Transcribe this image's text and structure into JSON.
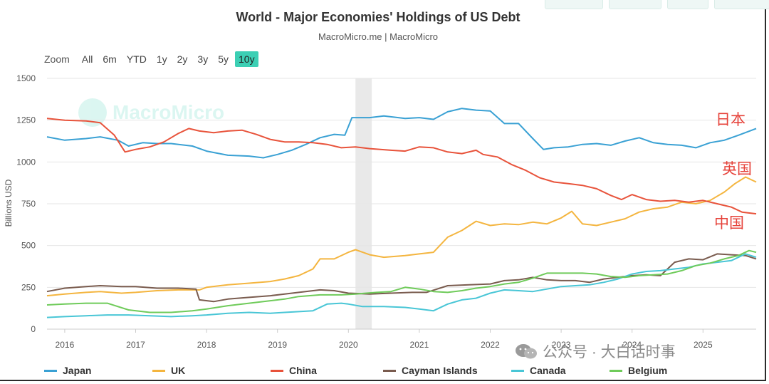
{
  "title": "World - Major Economies' Holdings of US Debt",
  "subtitle": "MacroMicro.me | MacroMicro",
  "zoom": {
    "label": "Zoom",
    "buttons": [
      "All",
      "6m",
      "YTD",
      "1y",
      "2y",
      "3y",
      "5y",
      "10y"
    ],
    "active": "10y"
  },
  "watermark": "MacroMicro",
  "brand": {
    "text": "公众号 · 大白话时事"
  },
  "annotations": {
    "japan": "日本",
    "uk": "英国",
    "china": "中国"
  },
  "chart_data": {
    "type": "line",
    "ylabel": "Billions USD",
    "ylim": [
      0,
      1500
    ],
    "yticks": [
      0,
      250,
      500,
      750,
      1000,
      1250,
      1500
    ],
    "xlim": [
      2015.75,
      2025.75
    ],
    "xticks": [
      "2016",
      "2017",
      "2018",
      "2019",
      "2020",
      "2021",
      "2022",
      "2023",
      "2024",
      "2025"
    ],
    "shaded_period": [
      2020.1,
      2020.33
    ],
    "series": [
      {
        "name": "Japan",
        "color": "#3aa1d4",
        "points": [
          [
            2015.75,
            1150
          ],
          [
            2016.0,
            1130
          ],
          [
            2016.3,
            1140
          ],
          [
            2016.5,
            1150
          ],
          [
            2016.75,
            1130
          ],
          [
            2016.9,
            1095
          ],
          [
            2017.1,
            1115
          ],
          [
            2017.3,
            1110
          ],
          [
            2017.5,
            1110
          ],
          [
            2017.8,
            1095
          ],
          [
            2018.0,
            1065
          ],
          [
            2018.3,
            1040
          ],
          [
            2018.6,
            1035
          ],
          [
            2018.8,
            1025
          ],
          [
            2019.0,
            1045
          ],
          [
            2019.2,
            1070
          ],
          [
            2019.4,
            1105
          ],
          [
            2019.6,
            1145
          ],
          [
            2019.8,
            1165
          ],
          [
            2019.95,
            1160
          ],
          [
            2020.05,
            1265
          ],
          [
            2020.3,
            1265
          ],
          [
            2020.5,
            1275
          ],
          [
            2020.8,
            1260
          ],
          [
            2021.0,
            1265
          ],
          [
            2021.2,
            1255
          ],
          [
            2021.4,
            1300
          ],
          [
            2021.6,
            1320
          ],
          [
            2021.8,
            1310
          ],
          [
            2022.0,
            1305
          ],
          [
            2022.2,
            1230
          ],
          [
            2022.4,
            1230
          ],
          [
            2022.6,
            1140
          ],
          [
            2022.75,
            1075
          ],
          [
            2022.9,
            1085
          ],
          [
            2023.1,
            1090
          ],
          [
            2023.3,
            1105
          ],
          [
            2023.5,
            1110
          ],
          [
            2023.7,
            1100
          ],
          [
            2023.9,
            1125
          ],
          [
            2024.1,
            1145
          ],
          [
            2024.3,
            1115
          ],
          [
            2024.5,
            1105
          ],
          [
            2024.7,
            1100
          ],
          [
            2024.9,
            1085
          ],
          [
            2025.1,
            1115
          ],
          [
            2025.3,
            1130
          ],
          [
            2025.5,
            1160
          ],
          [
            2025.75,
            1200
          ]
        ]
      },
      {
        "name": "UK",
        "color": "#f4b53f",
        "points": [
          [
            2015.75,
            200
          ],
          [
            2016.0,
            210
          ],
          [
            2016.3,
            220
          ],
          [
            2016.5,
            225
          ],
          [
            2016.8,
            215
          ],
          [
            2017.0,
            220
          ],
          [
            2017.3,
            230
          ],
          [
            2017.6,
            235
          ],
          [
            2017.9,
            235
          ],
          [
            2018.0,
            250
          ],
          [
            2018.3,
            265
          ],
          [
            2018.6,
            275
          ],
          [
            2018.9,
            285
          ],
          [
            2019.1,
            300
          ],
          [
            2019.3,
            320
          ],
          [
            2019.5,
            360
          ],
          [
            2019.6,
            420
          ],
          [
            2019.8,
            420
          ],
          [
            2020.0,
            460
          ],
          [
            2020.1,
            475
          ],
          [
            2020.3,
            445
          ],
          [
            2020.5,
            430
          ],
          [
            2020.8,
            440
          ],
          [
            2021.0,
            450
          ],
          [
            2021.2,
            460
          ],
          [
            2021.4,
            550
          ],
          [
            2021.6,
            590
          ],
          [
            2021.8,
            645
          ],
          [
            2022.0,
            620
          ],
          [
            2022.2,
            630
          ],
          [
            2022.4,
            625
          ],
          [
            2022.6,
            640
          ],
          [
            2022.8,
            630
          ],
          [
            2023.0,
            665
          ],
          [
            2023.15,
            705
          ],
          [
            2023.3,
            630
          ],
          [
            2023.5,
            620
          ],
          [
            2023.7,
            640
          ],
          [
            2023.9,
            660
          ],
          [
            2024.1,
            700
          ],
          [
            2024.3,
            720
          ],
          [
            2024.5,
            730
          ],
          [
            2024.7,
            760
          ],
          [
            2024.9,
            750
          ],
          [
            2025.1,
            770
          ],
          [
            2025.3,
            820
          ],
          [
            2025.45,
            870
          ],
          [
            2025.6,
            910
          ],
          [
            2025.75,
            880
          ]
        ]
      },
      {
        "name": "China",
        "color": "#e8533b",
        "points": [
          [
            2015.75,
            1260
          ],
          [
            2016.0,
            1250
          ],
          [
            2016.3,
            1245
          ],
          [
            2016.5,
            1235
          ],
          [
            2016.7,
            1160
          ],
          [
            2016.85,
            1060
          ],
          [
            2017.0,
            1075
          ],
          [
            2017.2,
            1090
          ],
          [
            2017.4,
            1120
          ],
          [
            2017.6,
            1170
          ],
          [
            2017.75,
            1200
          ],
          [
            2017.9,
            1185
          ],
          [
            2018.1,
            1175
          ],
          [
            2018.3,
            1185
          ],
          [
            2018.5,
            1190
          ],
          [
            2018.7,
            1165
          ],
          [
            2018.9,
            1135
          ],
          [
            2019.1,
            1120
          ],
          [
            2019.3,
            1120
          ],
          [
            2019.5,
            1115
          ],
          [
            2019.7,
            1105
          ],
          [
            2019.9,
            1085
          ],
          [
            2020.1,
            1090
          ],
          [
            2020.3,
            1080
          ],
          [
            2020.6,
            1070
          ],
          [
            2020.8,
            1065
          ],
          [
            2021.0,
            1090
          ],
          [
            2021.2,
            1085
          ],
          [
            2021.4,
            1060
          ],
          [
            2021.6,
            1050
          ],
          [
            2021.8,
            1070
          ],
          [
            2021.9,
            1045
          ],
          [
            2022.1,
            1030
          ],
          [
            2022.3,
            985
          ],
          [
            2022.5,
            950
          ],
          [
            2022.7,
            905
          ],
          [
            2022.9,
            880
          ],
          [
            2023.1,
            870
          ],
          [
            2023.3,
            860
          ],
          [
            2023.5,
            840
          ],
          [
            2023.7,
            800
          ],
          [
            2023.85,
            775
          ],
          [
            2024.0,
            805
          ],
          [
            2024.2,
            775
          ],
          [
            2024.4,
            765
          ],
          [
            2024.6,
            770
          ],
          [
            2024.8,
            760
          ],
          [
            2025.0,
            770
          ],
          [
            2025.2,
            750
          ],
          [
            2025.4,
            730
          ],
          [
            2025.55,
            700
          ],
          [
            2025.75,
            690
          ]
        ]
      },
      {
        "name": "Cayman Islands",
        "color": "#7a5c4f",
        "points": [
          [
            2015.75,
            225
          ],
          [
            2016.0,
            245
          ],
          [
            2016.3,
            255
          ],
          [
            2016.5,
            260
          ],
          [
            2016.8,
            255
          ],
          [
            2017.0,
            255
          ],
          [
            2017.3,
            245
          ],
          [
            2017.6,
            245
          ],
          [
            2017.85,
            240
          ],
          [
            2017.9,
            175
          ],
          [
            2018.1,
            165
          ],
          [
            2018.3,
            180
          ],
          [
            2018.6,
            190
          ],
          [
            2018.9,
            200
          ],
          [
            2019.1,
            210
          ],
          [
            2019.3,
            220
          ],
          [
            2019.6,
            235
          ],
          [
            2019.8,
            230
          ],
          [
            2020.0,
            215
          ],
          [
            2020.3,
            210
          ],
          [
            2020.6,
            215
          ],
          [
            2020.9,
            220
          ],
          [
            2021.1,
            220
          ],
          [
            2021.4,
            260
          ],
          [
            2021.7,
            265
          ],
          [
            2022.0,
            270
          ],
          [
            2022.2,
            290
          ],
          [
            2022.4,
            295
          ],
          [
            2022.6,
            310
          ],
          [
            2022.8,
            295
          ],
          [
            2023.0,
            290
          ],
          [
            2023.2,
            290
          ],
          [
            2023.4,
            280
          ],
          [
            2023.6,
            300
          ],
          [
            2023.8,
            310
          ],
          [
            2024.0,
            320
          ],
          [
            2024.2,
            325
          ],
          [
            2024.4,
            320
          ],
          [
            2024.6,
            400
          ],
          [
            2024.8,
            420
          ],
          [
            2025.0,
            415
          ],
          [
            2025.2,
            450
          ],
          [
            2025.4,
            445
          ],
          [
            2025.6,
            440
          ],
          [
            2025.75,
            420
          ]
        ]
      },
      {
        "name": "Canada",
        "color": "#49c6d6",
        "points": [
          [
            2015.75,
            70
          ],
          [
            2016.0,
            75
          ],
          [
            2016.3,
            80
          ],
          [
            2016.6,
            85
          ],
          [
            2016.9,
            85
          ],
          [
            2017.2,
            80
          ],
          [
            2017.5,
            75
          ],
          [
            2017.8,
            80
          ],
          [
            2018.0,
            85
          ],
          [
            2018.3,
            95
          ],
          [
            2018.6,
            100
          ],
          [
            2018.9,
            95
          ],
          [
            2019.1,
            100
          ],
          [
            2019.3,
            105
          ],
          [
            2019.5,
            110
          ],
          [
            2019.7,
            150
          ],
          [
            2019.9,
            155
          ],
          [
            2020.0,
            150
          ],
          [
            2020.2,
            135
          ],
          [
            2020.5,
            135
          ],
          [
            2020.8,
            130
          ],
          [
            2021.0,
            120
          ],
          [
            2021.2,
            110
          ],
          [
            2021.4,
            150
          ],
          [
            2021.6,
            175
          ],
          [
            2021.8,
            185
          ],
          [
            2022.0,
            215
          ],
          [
            2022.2,
            235
          ],
          [
            2022.4,
            230
          ],
          [
            2022.6,
            225
          ],
          [
            2022.8,
            240
          ],
          [
            2023.0,
            255
          ],
          [
            2023.2,
            260
          ],
          [
            2023.4,
            265
          ],
          [
            2023.6,
            280
          ],
          [
            2023.8,
            300
          ],
          [
            2024.0,
            330
          ],
          [
            2024.2,
            345
          ],
          [
            2024.4,
            350
          ],
          [
            2024.6,
            360
          ],
          [
            2024.8,
            370
          ],
          [
            2025.0,
            390
          ],
          [
            2025.2,
            400
          ],
          [
            2025.4,
            410
          ],
          [
            2025.6,
            450
          ],
          [
            2025.75,
            430
          ]
        ]
      },
      {
        "name": "Belgium",
        "color": "#6fcb5a",
        "points": [
          [
            2015.75,
            145
          ],
          [
            2016.0,
            150
          ],
          [
            2016.3,
            155
          ],
          [
            2016.6,
            155
          ],
          [
            2016.9,
            115
          ],
          [
            2017.2,
            100
          ],
          [
            2017.5,
            100
          ],
          [
            2017.8,
            110
          ],
          [
            2018.0,
            120
          ],
          [
            2018.3,
            140
          ],
          [
            2018.6,
            155
          ],
          [
            2018.9,
            170
          ],
          [
            2019.1,
            180
          ],
          [
            2019.3,
            195
          ],
          [
            2019.6,
            205
          ],
          [
            2019.9,
            205
          ],
          [
            2020.1,
            210
          ],
          [
            2020.4,
            220
          ],
          [
            2020.6,
            225
          ],
          [
            2020.8,
            250
          ],
          [
            2021.0,
            240
          ],
          [
            2021.2,
            225
          ],
          [
            2021.4,
            220
          ],
          [
            2021.6,
            230
          ],
          [
            2021.8,
            245
          ],
          [
            2022.0,
            255
          ],
          [
            2022.2,
            270
          ],
          [
            2022.4,
            280
          ],
          [
            2022.6,
            305
          ],
          [
            2022.8,
            335
          ],
          [
            2023.0,
            335
          ],
          [
            2023.3,
            335
          ],
          [
            2023.5,
            330
          ],
          [
            2023.7,
            315
          ],
          [
            2023.9,
            310
          ],
          [
            2024.1,
            320
          ],
          [
            2024.3,
            325
          ],
          [
            2024.5,
            330
          ],
          [
            2024.7,
            350
          ],
          [
            2024.9,
            380
          ],
          [
            2025.1,
            395
          ],
          [
            2025.3,
            420
          ],
          [
            2025.5,
            440
          ],
          [
            2025.65,
            470
          ],
          [
            2025.75,
            460
          ]
        ]
      }
    ]
  }
}
